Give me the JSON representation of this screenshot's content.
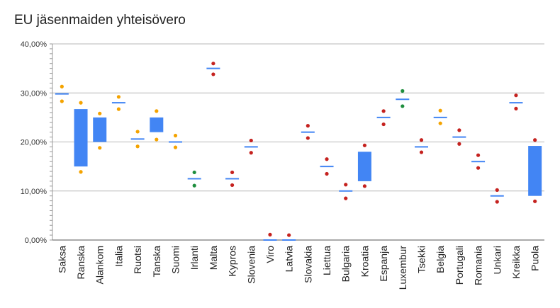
{
  "chart_data": {
    "type": "bar",
    "title": "EU jäsenmaiden yhteisövero",
    "xlabel": "",
    "ylabel": "",
    "ylim": [
      0,
      0.4
    ],
    "y_tick_values": [
      0,
      0.1,
      0.2,
      0.3,
      0.4
    ],
    "y_tick_labels": [
      "0,00%",
      "10,00%",
      "20,00%",
      "30,00%",
      "40,00%"
    ],
    "grid": true,
    "legend": "none",
    "colors": {
      "bar": "#4285f4",
      "orange_dot": "#f4a300",
      "red_dot": "#c5221f",
      "green_dot": "#1e8e3e",
      "grid": "#b7b7b7"
    },
    "categories": [
      "Saksa",
      "Ranska",
      "Alankom",
      "Italia",
      "Ruotsi",
      "Tanska",
      "Suomi",
      "Irlanti",
      "Malta",
      "Kypros",
      "Slovenia",
      "Viro",
      "Latvia",
      "Slovakia",
      "Liettua",
      "Bulgaria",
      "Kroatia",
      "Espanja",
      "Luxembur",
      "Tsekki",
      "Belgia",
      "Portugali",
      "Romania",
      "Unkari",
      "Kreikka",
      "Puola"
    ],
    "series": [
      {
        "values_low": [
          0.298,
          0.15,
          0.2,
          0.28,
          0.206,
          0.22,
          0.2,
          0.125,
          0.35,
          0.125,
          0.19,
          0.0,
          0.0,
          0.22,
          0.15,
          0.1,
          0.12,
          0.25,
          0.287,
          0.19,
          0.25,
          0.21,
          0.16,
          0.09,
          0.28,
          0.09
        ]
      },
      {
        "values_high": [
          0.298,
          0.267,
          0.25,
          0.28,
          0.206,
          0.25,
          0.2,
          0.125,
          0.35,
          0.125,
          0.19,
          0.0,
          0.0,
          0.22,
          0.15,
          0.1,
          0.18,
          0.25,
          0.287,
          0.19,
          0.25,
          0.21,
          0.16,
          0.09,
          0.28,
          0.192
        ]
      },
      {
        "marker_upper": [
          0.313,
          0.28,
          0.258,
          0.292,
          0.221,
          0.263,
          0.213,
          0.138,
          0.36,
          0.138,
          0.203,
          0.011,
          0.01,
          0.233,
          0.165,
          0.113,
          0.193,
          0.263,
          0.304,
          0.204,
          0.264,
          0.224,
          0.173,
          0.102,
          0.295,
          0.204
        ]
      },
      {
        "marker_lower": [
          0.283,
          0.139,
          0.188,
          0.267,
          0.191,
          0.205,
          0.189,
          0.111,
          0.338,
          0.112,
          0.178,
          null,
          null,
          0.208,
          0.135,
          0.085,
          0.11,
          0.236,
          0.273,
          0.179,
          0.238,
          0.196,
          0.147,
          0.078,
          0.268,
          0.079
        ]
      },
      {
        "marker_color": [
          "orange",
          "orange",
          "orange",
          "orange",
          "orange",
          "orange",
          "orange",
          "green",
          "red",
          "red",
          "red",
          "red",
          "red",
          "red",
          "red",
          "red",
          "red",
          "red",
          "green",
          "red",
          "orange",
          "red",
          "red",
          "red",
          "red",
          "red"
        ]
      }
    ]
  }
}
